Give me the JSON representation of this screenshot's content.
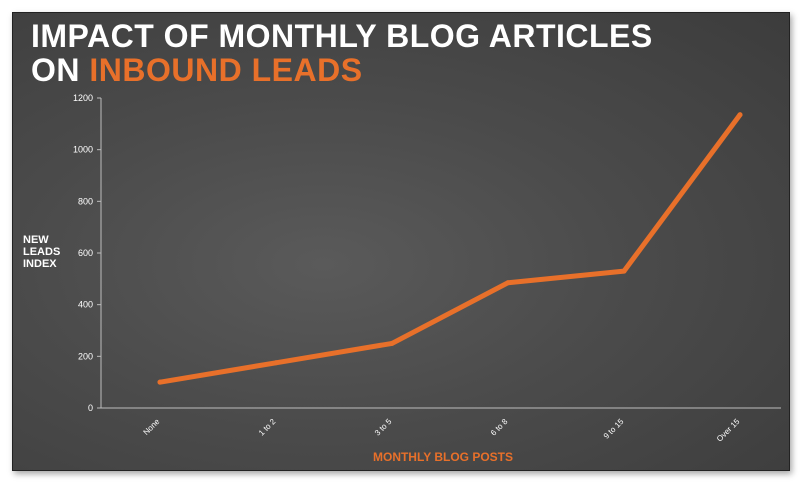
{
  "title": {
    "line1": "IMPACT OF MONTHLY BLOG ARTICLES",
    "line2_prefix": "ON ",
    "line2_accent": "INBOUND LEADS"
  },
  "colors": {
    "accent": "#e8702a",
    "text": "#ffffff",
    "background": "#4b4b4b",
    "axis": "#bdbdbd"
  },
  "chart_data": {
    "type": "line",
    "title": "IMPACT OF MONTHLY BLOG ARTICLES ON INBOUND LEADS",
    "xlabel": "MONTHLY BLOG POSTS",
    "ylabel_lines": [
      "NEW",
      "LEADS",
      "INDEX"
    ],
    "categories": [
      "None",
      "1 to 2",
      "3 to 5",
      "6 to 8",
      "9 to 15",
      "Over 15"
    ],
    "series": [
      {
        "values": [
          100,
          175,
          250,
          485,
          530,
          1135
        ]
      }
    ],
    "ylim": [
      0,
      1200
    ],
    "yticks": [
      0,
      200,
      400,
      600,
      800,
      1000,
      1200
    ],
    "grid": false,
    "legend": "none"
  }
}
